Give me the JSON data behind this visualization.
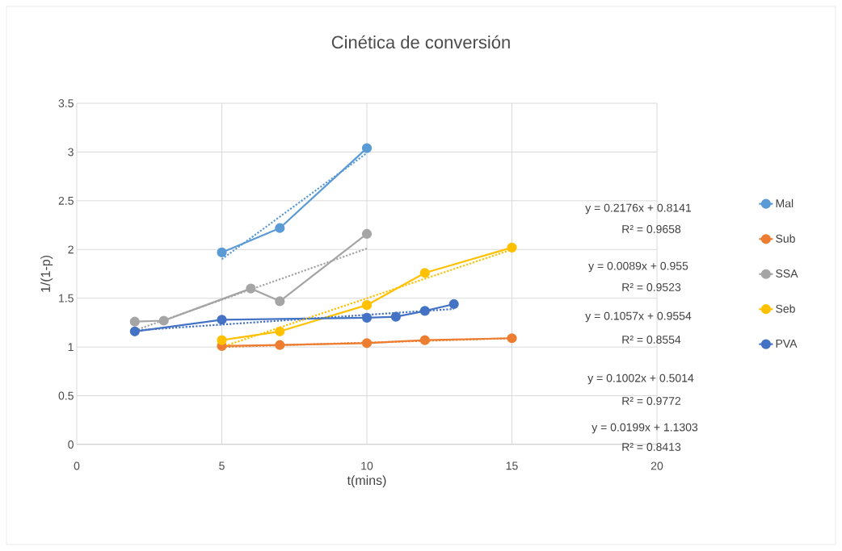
{
  "chart_data": {
    "type": "line",
    "title": "Cinética de conversión",
    "xlabel": "t(mins)",
    "ylabel": "1/(1-p)",
    "xlim": [
      0,
      20
    ],
    "ylim": [
      0,
      3.5
    ],
    "xticks": [
      0,
      5,
      10,
      15,
      20
    ],
    "yticks": [
      0,
      0.5,
      1,
      1.5,
      2,
      2.5,
      3,
      3.5
    ],
    "grid": true,
    "legend": "right",
    "marker": "circle",
    "line_style": "solid",
    "series": [
      {
        "name": "Mal",
        "color": "#5b9bd5",
        "x": [
          5,
          7,
          10
        ],
        "values": [
          1.97,
          2.22,
          3.04
        ]
      },
      {
        "name": "Sub",
        "color": "#ed7d31",
        "x": [
          5,
          7,
          10,
          12,
          15
        ],
        "values": [
          1.01,
          1.02,
          1.04,
          1.07,
          1.09
        ]
      },
      {
        "name": "SSA",
        "color": "#a5a5a5",
        "x": [
          2,
          3,
          6,
          7,
          10
        ],
        "values": [
          1.26,
          1.27,
          1.6,
          1.47,
          2.16
        ]
      },
      {
        "name": "Seb",
        "color": "#ffc000",
        "x": [
          5,
          7,
          10,
          12,
          15
        ],
        "values": [
          1.07,
          1.16,
          1.43,
          1.76,
          2.02
        ]
      },
      {
        "name": "PVA",
        "color": "#4472c4",
        "x": [
          2,
          5,
          10,
          11,
          12,
          13
        ],
        "values": [
          1.16,
          1.28,
          1.3,
          1.31,
          1.37,
          1.44
        ]
      },
      {
        "type": "line",
        "color": "#5b9bd5",
        "x": [
          5,
          10
        ],
        "values": [
          1.9,
          2.99
        ],
        "marker": "none",
        "line_style": "dotted"
      },
      {
        "type": "line",
        "color": "#ed7d31",
        "x": [
          5,
          15
        ],
        "values": [
          1.0,
          1.09
        ],
        "marker": "none",
        "line_style": "dotted"
      },
      {
        "type": "line",
        "color": "#a5a5a5",
        "x": [
          2,
          10
        ],
        "values": [
          1.17,
          2.01
        ],
        "marker": "none",
        "line_style": "dotted"
      },
      {
        "type": "line",
        "color": "#ffc000",
        "x": [
          5,
          15
        ],
        "values": [
          1.0,
          2.0
        ],
        "marker": "none",
        "line_style": "dotted"
      },
      {
        "type": "line",
        "color": "#4472c4",
        "x": [
          2,
          13
        ],
        "values": [
          1.17,
          1.39
        ],
        "marker": "none",
        "line_style": "dotted"
      }
    ],
    "annotations": [
      "y = 0.2176x + 0.8141",
      "R² = 0.9658",
      "y = 0.0089x + 0.955",
      "R² = 0.9523",
      "y = 0.1057x + 0.9554",
      "R² = 0.8554",
      "y = 0.1002x + 0.5014",
      "R² = 0.9772",
      "y = 0.0199x + 1.1303",
      "R² = 0.8413"
    ]
  }
}
